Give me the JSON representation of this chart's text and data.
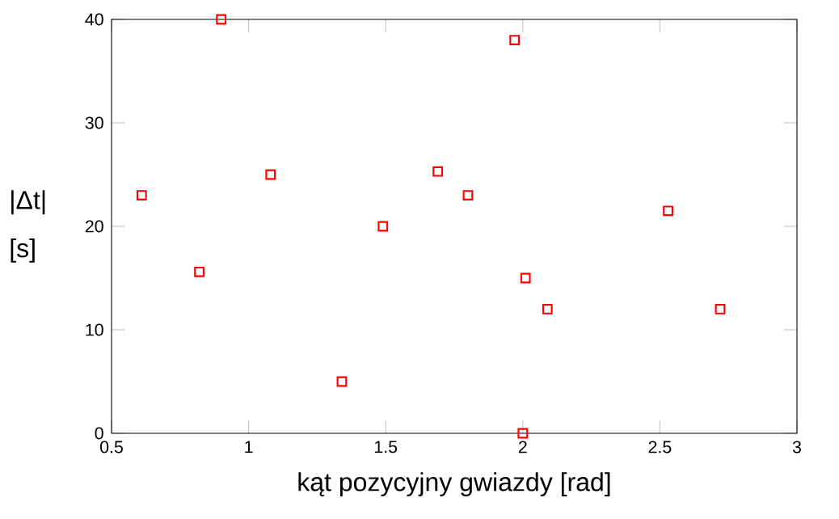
{
  "chart_data": {
    "type": "scatter",
    "xlabel": "kąt pozycyjny gwiazdy [rad]",
    "ylabel": "|Δt| [s]",
    "x": [
      0.61,
      0.82,
      0.9,
      1.08,
      1.34,
      1.49,
      1.69,
      1.8,
      1.97,
      2.01,
      2.0,
      2.09,
      2.53,
      2.72
    ],
    "series": [
      {
        "color": "#ff0000",
        "values": [
          23,
          15.6,
          40,
          25,
          5,
          20,
          25.3,
          23,
          38,
          15,
          0,
          12,
          21.5,
          12
        ]
      }
    ],
    "marker": "square",
    "grid": false,
    "xlim": [
      0.5,
      3
    ],
    "ylim": [
      0,
      40
    ],
    "xticks": [
      0.5,
      1,
      1.5,
      2,
      2.5,
      3
    ],
    "yticks": [
      0,
      10,
      20,
      30,
      40
    ]
  }
}
